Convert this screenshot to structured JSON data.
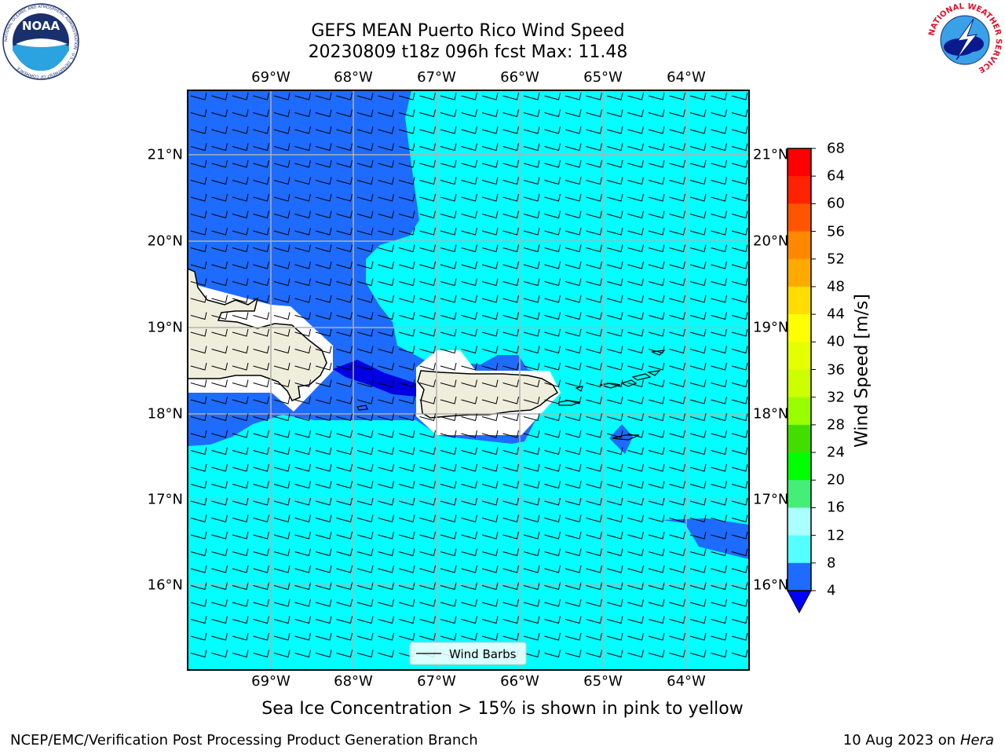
{
  "title_line1": "GEFS MEAN Puerto Rico Wind Speed",
  "title_line2": "20230809 t18z 096h fcst   Max: 11.48",
  "lon_labels": [
    "69°W",
    "68°W",
    "67°W",
    "66°W",
    "65°W",
    "64°W"
  ],
  "lat_labels": [
    "21°N",
    "20°N",
    "19°N",
    "18°N",
    "17°N",
    "16°N"
  ],
  "legend_label": "Wind Barbs",
  "colorbar": {
    "title": "Wind Speed [m/s]",
    "ticks": [
      "68",
      "64",
      "60",
      "56",
      "52",
      "48",
      "44",
      "40",
      "36",
      "32",
      "28",
      "24",
      "20",
      "16",
      "12",
      "8",
      "4"
    ],
    "colors": [
      "#ff0000",
      "#ff2200",
      "#ff5500",
      "#ff8800",
      "#ffaa00",
      "#ffdd00",
      "#ffff00",
      "#e6ff00",
      "#ccff00",
      "#99ff00",
      "#44dd00",
      "#00ff00",
      "#44ee77",
      "#aaffff",
      "#55ffff",
      "#00ffff",
      "#1e6bff"
    ],
    "extend_color": "#0000ff"
  },
  "colors": {
    "low_wind": "#1e6bff",
    "moderate_wind": "#00ffff",
    "very_low_wind": "#0000e0",
    "land": "#efeedc"
  },
  "sea_ice_note": "Sea Ice Concentration > 15% is shown in pink to yellow",
  "footer_left": "NCEP/EMC/Verification Post Processing Product Generation Branch",
  "footer_date": "10 Aug 2023 on",
  "footer_machine": "Hera",
  "logo_left": "NOAA",
  "logo_left_ring": "NATIONAL OCEANIC AND ATMOSPHERIC ADMINISTRATION · U.S. DEPARTMENT OF COMMERCE",
  "logo_right_ring": "NATIONAL WEATHER SERVICE"
}
